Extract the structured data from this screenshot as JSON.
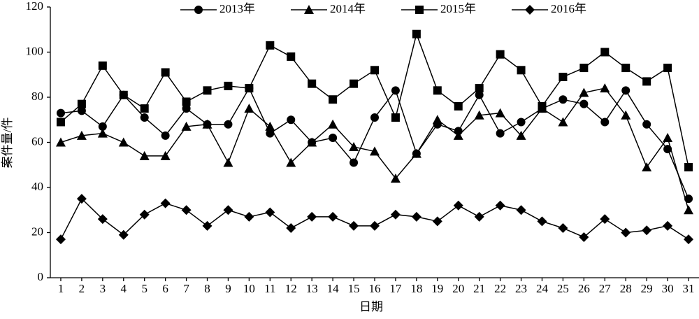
{
  "chart_data": {
    "type": "line",
    "x_label": "日期",
    "y_label": "案件量/件",
    "x": [
      1,
      2,
      3,
      4,
      5,
      6,
      7,
      8,
      9,
      10,
      11,
      12,
      13,
      14,
      15,
      16,
      17,
      18,
      19,
      20,
      21,
      22,
      23,
      24,
      25,
      26,
      27,
      28,
      29,
      30,
      31
    ],
    "xlim": [
      0.5,
      31.5
    ],
    "xticks": [
      1,
      2,
      3,
      4,
      5,
      6,
      7,
      8,
      9,
      10,
      11,
      12,
      13,
      14,
      15,
      16,
      17,
      18,
      19,
      20,
      21,
      22,
      23,
      24,
      25,
      26,
      27,
      28,
      29,
      30,
      31
    ],
    "ylim": [
      0,
      120
    ],
    "yticks": [
      0,
      20,
      40,
      60,
      80,
      100,
      120
    ],
    "legend": "top",
    "grid": false,
    "series": [
      {
        "name": "2013年",
        "color": "#000000",
        "marker": "circle",
        "values": [
          73,
          74,
          67,
          81,
          71,
          63,
          75,
          68,
          68,
          84,
          64,
          70,
          60,
          62,
          51,
          71,
          83,
          55,
          68,
          65,
          81,
          64,
          69,
          75,
          79,
          77,
          69,
          83,
          68,
          57,
          35
        ]
      },
      {
        "name": "2014年",
        "color": "#000000",
        "marker": "triangle",
        "values": [
          60,
          63,
          64,
          60,
          54,
          54,
          67,
          68,
          51,
          75,
          67,
          51,
          60,
          68,
          58,
          56,
          44,
          55,
          70,
          63,
          72,
          73,
          63,
          75,
          69,
          82,
          84,
          72,
          49,
          62,
          30
        ]
      },
      {
        "name": "2015年",
        "color": "#000000",
        "marker": "square",
        "values": [
          69,
          77,
          94,
          81,
          75,
          91,
          78,
          83,
          85,
          84,
          103,
          98,
          86,
          79,
          86,
          92,
          71,
          108,
          83,
          76,
          84,
          99,
          92,
          76,
          89,
          93,
          100,
          93,
          87,
          93,
          49
        ]
      },
      {
        "name": "2016年",
        "color": "#000000",
        "marker": "diamond",
        "values": [
          17,
          35,
          26,
          19,
          28,
          33,
          30,
          23,
          30,
          27,
          29,
          22,
          27,
          27,
          23,
          23,
          28,
          27,
          25,
          32,
          27,
          32,
          30,
          25,
          22,
          18,
          26,
          20,
          21,
          23,
          17
        ]
      }
    ]
  }
}
